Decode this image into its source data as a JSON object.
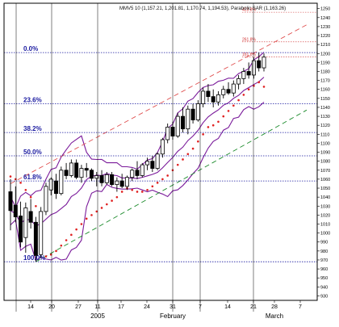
{
  "chart_data": {
    "type": "candlestick",
    "title": "MMV5 10 (1,157.21, 1,201.81, 1,170.74, 1,194.53), Parabolic SAR (1,163.26)",
    "y_ticks": [
      930,
      940,
      950,
      960,
      970,
      980,
      990,
      1000,
      1010,
      1020,
      1030,
      1040,
      1050,
      1060,
      1070,
      1080,
      1090,
      1100,
      1110,
      1120,
      1130,
      1140,
      1150,
      1160,
      1170,
      1180,
      1190,
      1200,
      1210,
      1220,
      1230,
      1240,
      1250
    ],
    "x_ticks": [
      "14",
      "20",
      "27",
      "11",
      "17",
      "24",
      "31",
      "7",
      "14",
      "21",
      "28",
      "7"
    ],
    "month_labels": [
      "2005",
      "February",
      "March"
    ],
    "ylim": [
      925,
      1256
    ],
    "fib_levels": [
      {
        "label": "0.0%",
        "value": 1201
      },
      {
        "label": "23.6%",
        "value": 1144
      },
      {
        "label": "38.2%",
        "value": 1112
      },
      {
        "label": "50.0%",
        "value": 1086
      },
      {
        "label": "61.8%",
        "value": 1058
      },
      {
        "label": "100.0%",
        "value": 968
      }
    ],
    "ext_levels": [
      {
        "label": "423.8%",
        "value": 1246
      },
      {
        "label": "261.8%",
        "value": 1213
      },
      {
        "label": "161.8%",
        "value": 1196
      }
    ],
    "series": {
      "candles": [
        {
          "o": 1046,
          "h": 1060,
          "l": 1003,
          "c": 1025
        },
        {
          "o": 1031,
          "h": 1052,
          "l": 1012,
          "c": 1018
        },
        {
          "o": 1019,
          "h": 1035,
          "l": 984,
          "c": 990
        },
        {
          "o": 995,
          "h": 1034,
          "l": 978,
          "c": 1028
        },
        {
          "o": 1024,
          "h": 1038,
          "l": 1005,
          "c": 1012
        },
        {
          "o": 1012,
          "h": 1018,
          "l": 968,
          "c": 975
        },
        {
          "o": 976,
          "h": 1029,
          "l": 972,
          "c": 1024
        },
        {
          "o": 1024,
          "h": 1056,
          "l": 1020,
          "c": 1052
        },
        {
          "o": 1048,
          "h": 1062,
          "l": 1042,
          "c": 1060
        },
        {
          "o": 1058,
          "h": 1066,
          "l": 1038,
          "c": 1044
        },
        {
          "o": 1044,
          "h": 1074,
          "l": 1042,
          "c": 1070
        },
        {
          "o": 1070,
          "h": 1078,
          "l": 1060,
          "c": 1064
        },
        {
          "o": 1064,
          "h": 1082,
          "l": 1062,
          "c": 1078
        },
        {
          "o": 1078,
          "h": 1082,
          "l": 1060,
          "c": 1062
        },
        {
          "o": 1062,
          "h": 1076,
          "l": 1056,
          "c": 1072
        },
        {
          "o": 1072,
          "h": 1078,
          "l": 1062,
          "c": 1070
        },
        {
          "o": 1070,
          "h": 1072,
          "l": 1058,
          "c": 1061
        },
        {
          "o": 1061,
          "h": 1068,
          "l": 1052,
          "c": 1064
        },
        {
          "o": 1064,
          "h": 1070,
          "l": 1052,
          "c": 1056
        },
        {
          "o": 1056,
          "h": 1068,
          "l": 1054,
          "c": 1065
        },
        {
          "o": 1065,
          "h": 1068,
          "l": 1052,
          "c": 1054
        },
        {
          "o": 1054,
          "h": 1062,
          "l": 1046,
          "c": 1058
        },
        {
          "o": 1058,
          "h": 1066,
          "l": 1050,
          "c": 1052
        },
        {
          "o": 1052,
          "h": 1064,
          "l": 1048,
          "c": 1062
        },
        {
          "o": 1062,
          "h": 1072,
          "l": 1058,
          "c": 1070
        },
        {
          "o": 1070,
          "h": 1080,
          "l": 1060,
          "c": 1064
        },
        {
          "o": 1064,
          "h": 1078,
          "l": 1062,
          "c": 1076
        },
        {
          "o": 1076,
          "h": 1084,
          "l": 1070,
          "c": 1080
        },
        {
          "o": 1080,
          "h": 1086,
          "l": 1068,
          "c": 1072
        },
        {
          "o": 1072,
          "h": 1090,
          "l": 1070,
          "c": 1088
        },
        {
          "o": 1088,
          "h": 1106,
          "l": 1084,
          "c": 1104
        },
        {
          "o": 1104,
          "h": 1122,
          "l": 1100,
          "c": 1118
        },
        {
          "o": 1118,
          "h": 1124,
          "l": 1104,
          "c": 1108
        },
        {
          "o": 1108,
          "h": 1134,
          "l": 1106,
          "c": 1130
        },
        {
          "o": 1130,
          "h": 1140,
          "l": 1112,
          "c": 1116
        },
        {
          "o": 1116,
          "h": 1142,
          "l": 1110,
          "c": 1138
        },
        {
          "o": 1138,
          "h": 1144,
          "l": 1122,
          "c": 1126
        },
        {
          "o": 1126,
          "h": 1148,
          "l": 1124,
          "c": 1144
        },
        {
          "o": 1144,
          "h": 1162,
          "l": 1140,
          "c": 1158
        },
        {
          "o": 1158,
          "h": 1166,
          "l": 1146,
          "c": 1152
        },
        {
          "o": 1152,
          "h": 1160,
          "l": 1140,
          "c": 1146
        },
        {
          "o": 1146,
          "h": 1158,
          "l": 1142,
          "c": 1154
        },
        {
          "o": 1154,
          "h": 1164,
          "l": 1150,
          "c": 1160
        },
        {
          "o": 1160,
          "h": 1168,
          "l": 1154,
          "c": 1156
        },
        {
          "o": 1156,
          "h": 1170,
          "l": 1152,
          "c": 1166
        },
        {
          "o": 1166,
          "h": 1176,
          "l": 1160,
          "c": 1172
        },
        {
          "o": 1172,
          "h": 1184,
          "l": 1166,
          "c": 1180
        },
        {
          "o": 1180,
          "h": 1190,
          "l": 1172,
          "c": 1176
        },
        {
          "o": 1176,
          "h": 1196,
          "l": 1172,
          "c": 1192
        },
        {
          "o": 1192,
          "h": 1201,
          "l": 1180,
          "c": 1184
        },
        {
          "o": 1184,
          "h": 1200,
          "l": 1180,
          "c": 1196
        }
      ],
      "sar": [
        1063,
        1060,
        1056,
        1048,
        1040,
        1030,
        1022,
        974,
        976,
        980,
        986,
        992,
        998,
        1004,
        1010,
        1016,
        1020,
        1024,
        1028,
        1032,
        1036,
        1040,
        1046,
        1050,
        1048,
        1046,
        1046,
        1048,
        1052,
        1056,
        1060,
        1064,
        1070,
        1076,
        1082,
        1088,
        1094,
        1102,
        1110,
        1118,
        1120,
        1124,
        1130,
        1136,
        1142,
        1148,
        1154,
        1160,
        1164,
        1168,
        1163
      ]
    }
  }
}
